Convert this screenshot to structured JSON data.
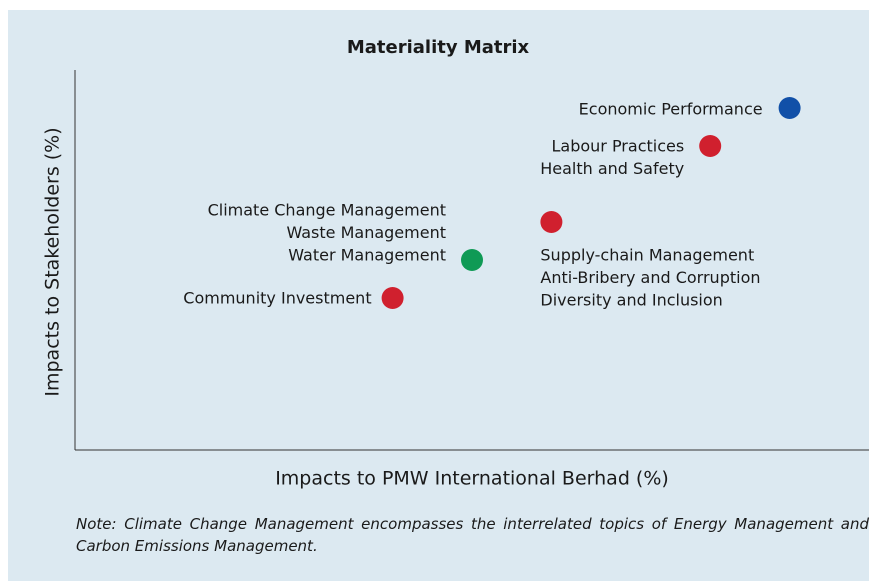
{
  "chart_data": {
    "type": "scatter",
    "title": "Materiality Matrix",
    "x_label": "Impacts to PMW International Berhad (%)",
    "y_label": "Impacts to Stakeholders (%)",
    "xlim": [
      0,
      100
    ],
    "ylim": [
      0,
      100
    ],
    "points": [
      {
        "x": 90,
        "y": 90,
        "color": "#1150a8",
        "labels": [
          "Economic Performance"
        ]
      },
      {
        "x": 80,
        "y": 80,
        "color": "#d0202e",
        "labels": [
          "Labour Practices",
          "Health and Safety"
        ]
      },
      {
        "x": 60,
        "y": 60,
        "color": "#d0202e",
        "labels": [
          "Supply-chain Management",
          "Anti-Bribery and Corruption",
          "Diversity and Inclusion"
        ]
      },
      {
        "x": 50,
        "y": 50,
        "color": "#0f9a55",
        "labels": [
          "Climate Change Management",
          "Waste Management",
          "Water Management"
        ]
      },
      {
        "x": 40,
        "y": 40,
        "color": "#d0202e",
        "labels": [
          "Community Investment"
        ]
      }
    ],
    "note": "Note: Climate Change Management encompasses the interrelated topics of Energy Management and Carbon Emissions Management."
  }
}
